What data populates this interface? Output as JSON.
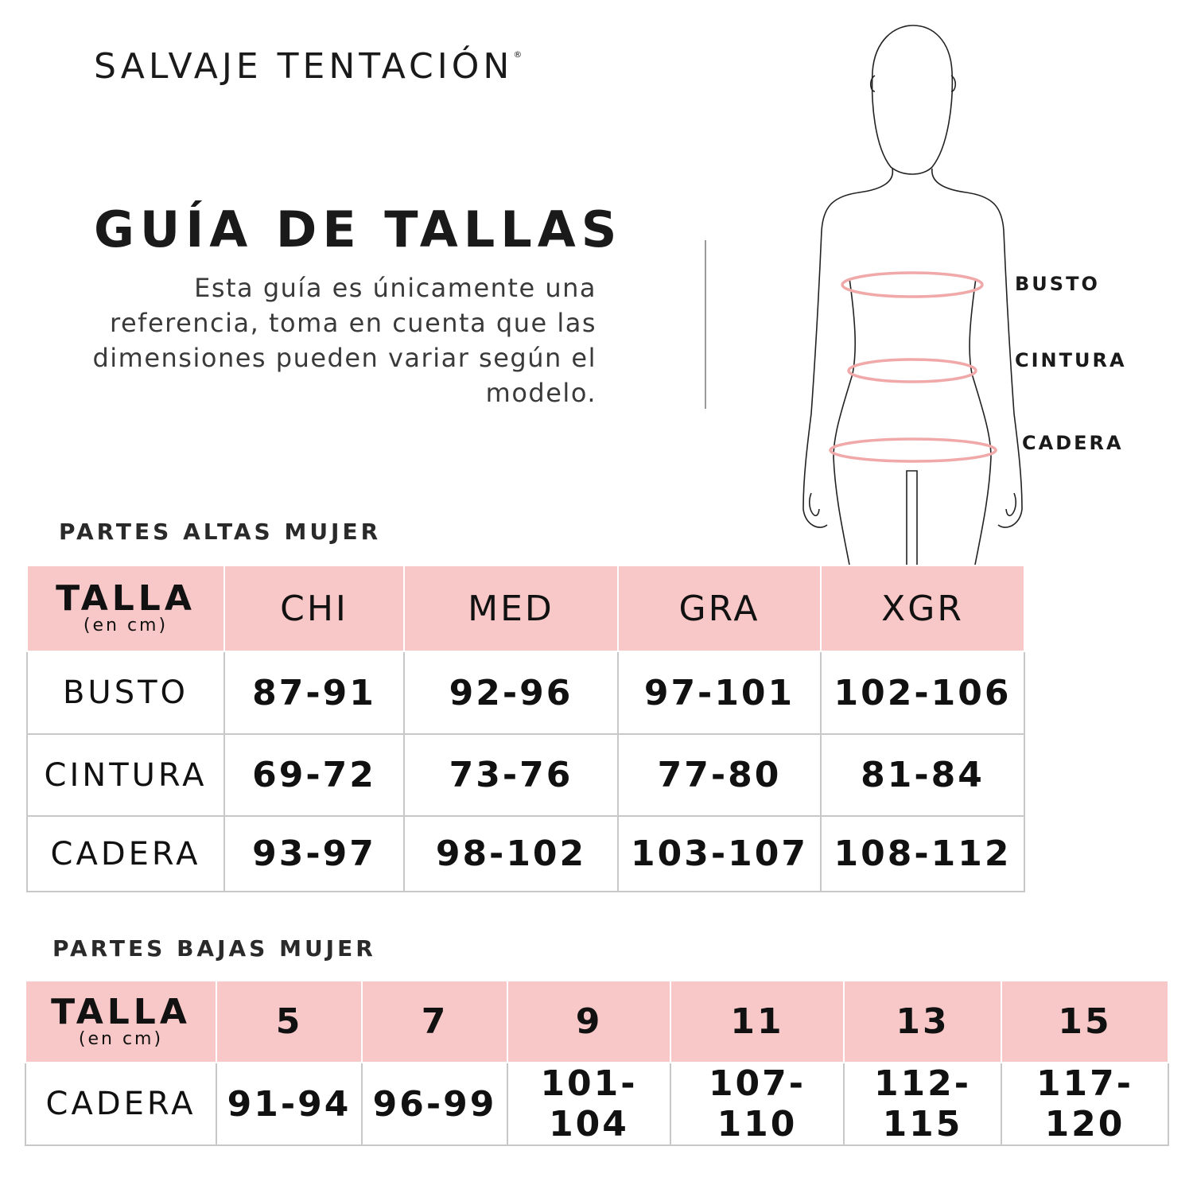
{
  "brand": {
    "name": "SALVAJE TENTACIÓN",
    "mark": "®"
  },
  "title": "GUÍA DE TALLAS",
  "description": "Esta guía es únicamente una referencia, toma en cuenta que las dimensiones pueden variar según el modelo.",
  "figure": {
    "labels": [
      "BUSTO",
      "CINTURA",
      "CADERA"
    ],
    "measure_color": "#f0a8a8"
  },
  "colors": {
    "header_bg": "#f8c7c7"
  },
  "tops": {
    "section_title": "PARTES ALTAS MUJER",
    "header_label": "TALLA",
    "header_unit": "(en cm)",
    "sizes": [
      "CHI",
      "MED",
      "GRA",
      "XGR"
    ],
    "rows": [
      {
        "label": "BUSTO",
        "values": [
          "87-91",
          "92-96",
          "97-101",
          "102-106"
        ]
      },
      {
        "label": "CINTURA",
        "values": [
          "69-72",
          "73-76",
          "77-80",
          "81-84"
        ]
      },
      {
        "label": "CADERA",
        "values": [
          "93-97",
          "98-102",
          "103-107",
          "108-112"
        ]
      }
    ]
  },
  "bottoms": {
    "section_title": "PARTES BAJAS MUJER",
    "header_label": "TALLA",
    "header_unit": "(en cm)",
    "sizes": [
      "5",
      "7",
      "9",
      "11",
      "13",
      "15"
    ],
    "rows": [
      {
        "label": "CADERA",
        "values": [
          "91-94",
          "96-99",
          "101-104",
          "107-110",
          "112-115",
          "117-120"
        ]
      }
    ]
  }
}
